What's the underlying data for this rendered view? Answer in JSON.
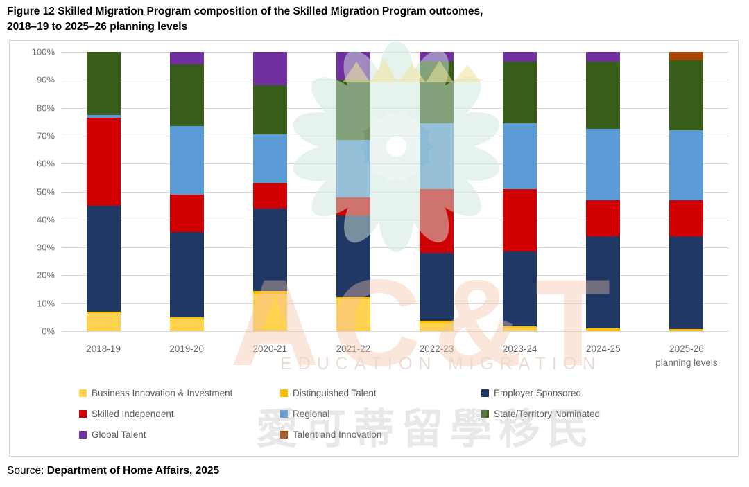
{
  "title": {
    "line1": "Figure 12 Skilled Migration Program composition of the Skilled Migration Program outcomes,",
    "line2": "2018–19 to 2025–26 planning levels"
  },
  "source": {
    "prefix": "Source:",
    "text": "Department of Home Affairs, 2025"
  },
  "watermark": {
    "brand": "AC&T",
    "subtitle": "EDUCATION MIGRATION",
    "chinese": "愛可蒂留學移民"
  },
  "chart_data": {
    "type": "bar",
    "stacked": true,
    "percent_stacked": true,
    "title": "Skilled Migration Program composition of the Skilled Migration Program outcomes, 2018–19 to 2025–26 planning levels",
    "xlabel": "",
    "ylabel": "",
    "ylim": [
      0,
      100
    ],
    "grid": "horizontal",
    "legend_position": "bottom",
    "y_ticks": [
      "100%",
      "90%",
      "80%",
      "70%",
      "60%",
      "50%",
      "40%",
      "30%",
      "20%",
      "10%",
      "0%"
    ],
    "categories": [
      "2018-19",
      "2019-20",
      "2020-21",
      "2021-22",
      "2022-23",
      "2023-24",
      "2024-25",
      "2025-26"
    ],
    "last_category_note": "planning levels",
    "series": [
      {
        "name": "Business Innovation & Investment",
        "color": "#FFD34F",
        "values": [
          6.5,
          4.5,
          13.5,
          11.5,
          3.0,
          1.0,
          0,
          0
        ]
      },
      {
        "name": "Distinguished Talent",
        "color": "#FFC000",
        "values": [
          0.5,
          0.5,
          1.0,
          0.7,
          0.7,
          0.7,
          1.0,
          0.7
        ]
      },
      {
        "name": "Employer Sponsored",
        "color": "#1F3864",
        "values": [
          38.0,
          30.5,
          29.5,
          29.3,
          24.3,
          26.8,
          33.0,
          33.3
        ]
      },
      {
        "name": "Skilled Independent",
        "color": "#D00000",
        "values": [
          31.5,
          13.5,
          9.0,
          6.5,
          23.0,
          22.5,
          13.0,
          13.0
        ]
      },
      {
        "name": "Regional",
        "color": "#5B9BD5",
        "values": [
          1.0,
          24.5,
          17.5,
          20.5,
          23.5,
          23.5,
          25.5,
          25.0
        ]
      },
      {
        "name": "State/Territory Nominated",
        "color": "#375D1B",
        "values": [
          22.5,
          22.0,
          17.5,
          21.5,
          22.0,
          22.0,
          24.0,
          25.0
        ]
      },
      {
        "name": "Global Talent",
        "color": "#7030A0",
        "values": [
          0,
          4.5,
          12.0,
          10.0,
          3.5,
          3.5,
          3.5,
          0
        ]
      },
      {
        "name": "Talent and Innovation",
        "color": "#A94400",
        "values": [
          0,
          0,
          0,
          0,
          0,
          0,
          0,
          3.0
        ]
      }
    ]
  }
}
